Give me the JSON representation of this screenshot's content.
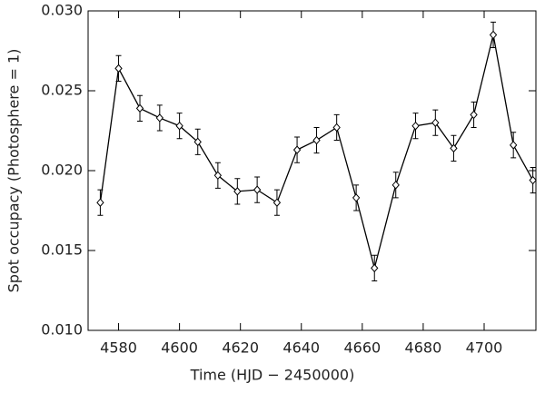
{
  "chart_data": {
    "type": "line",
    "xlabel": "Time (HJD − 2450000)",
    "ylabel": "Spot occupacy (Photosphere = 1)",
    "x": [
      4574,
      4580,
      4587,
      4593.5,
      4600,
      4606,
      4612.6,
      4619,
      4625.5,
      4632,
      4638.6,
      4645,
      4651.6,
      4658,
      4664,
      4671,
      4677.5,
      4684,
      4690,
      4696.6,
      4703,
      4709.6,
      4716
    ],
    "values": [
      0.018,
      0.0264,
      0.0239,
      0.0233,
      0.0228,
      0.0218,
      0.0197,
      0.0187,
      0.0188,
      0.018,
      0.0213,
      0.0219,
      0.0227,
      0.0183,
      0.0139,
      0.0191,
      0.0228,
      0.023,
      0.0214,
      0.0235,
      0.0285,
      0.0216,
      0.0194
    ],
    "errors": [
      0.0008,
      0.0008,
      0.0008,
      0.0008,
      0.0008,
      0.0008,
      0.0008,
      0.0008,
      0.0008,
      0.0008,
      0.0008,
      0.0008,
      0.0008,
      0.0008,
      0.0008,
      0.0008,
      0.0008,
      0.0008,
      0.0008,
      0.0008,
      0.0008,
      0.0008,
      0.0008
    ],
    "color": "#000000",
    "xlim": [
      4570,
      4717
    ],
    "ylim": [
      0.01,
      0.03
    ],
    "xticks": [
      4580,
      4600,
      4620,
      4640,
      4660,
      4680,
      4700
    ],
    "yticks": [
      {
        "value": 0.01,
        "label": "0.010"
      },
      {
        "value": 0.015,
        "label": "0.015"
      },
      {
        "value": 0.02,
        "label": "0.020"
      },
      {
        "value": 0.025,
        "label": "0.025"
      },
      {
        "value": 0.03,
        "label": "0.030"
      }
    ]
  }
}
